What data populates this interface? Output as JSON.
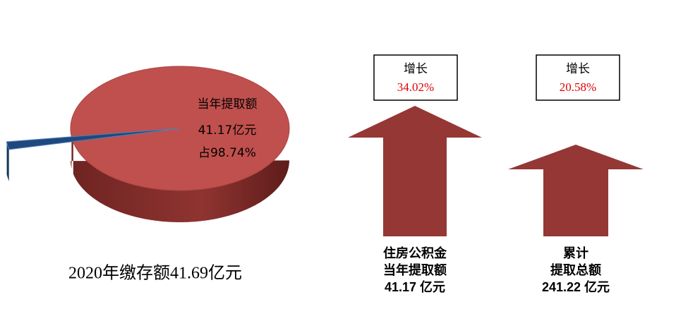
{
  "chart_data": {
    "type": "pie",
    "title": "2020年缴存额41.69亿元",
    "categories": [
      "当年提取额",
      null
    ],
    "values": [
      98.74,
      1.26
    ],
    "value_labels": [
      "占98.74%",
      null
    ],
    "annotations": [
      "41.17亿元"
    ],
    "colors": [
      "#c0504d",
      "#1f497d"
    ]
  },
  "arrows": [
    {
      "box_title": "增长",
      "growth": "34.02%",
      "label": [
        "住房公积金",
        "当年提取额",
        "41.17 亿元"
      ]
    },
    {
      "box_title": "增长",
      "growth": "20.58%",
      "label": [
        "累计",
        "提取总额",
        "241.22 亿元"
      ]
    }
  ]
}
